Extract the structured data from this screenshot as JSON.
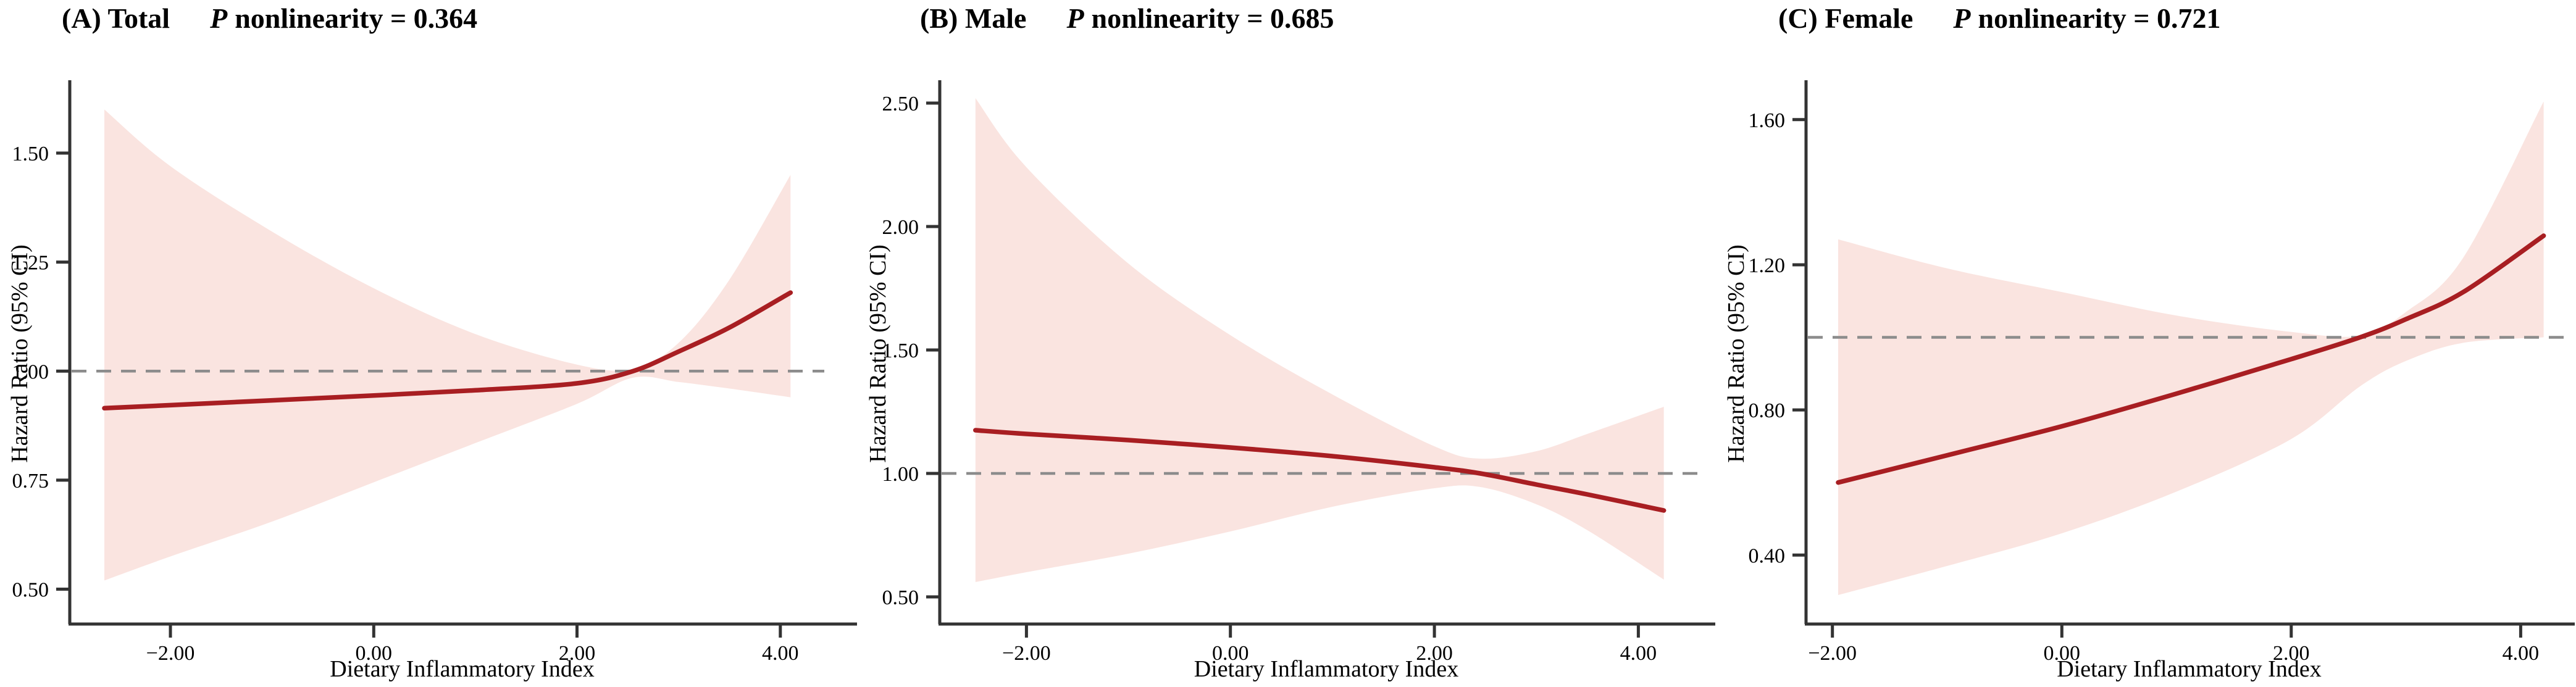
{
  "figure": {
    "background": "#FFFFFF",
    "x_axis_label": "Dietary Inflammatory Index",
    "y_axis_label": "Hazard Ratio (95% CI)",
    "reference_line": 1.0,
    "colors": {
      "spline_line": "#A81E22",
      "ci_band": "#FAE4E0",
      "reference_dashed": "#8C8C8C",
      "axis": "#333333",
      "text": "#000000"
    }
  },
  "chart_data": [
    {
      "type": "line",
      "title": "(A) Total",
      "p_symbol": "P",
      "p_rest": "nonlinearity = 0.364",
      "p_nonlinearity": 0.364,
      "xlabel": "Dietary Inflammatory Index",
      "ylabel": "Hazard Ratio (95% CI)",
      "xlim": [
        -2.99,
        4.73
      ],
      "ylim": [
        0.42,
        1.66
      ],
      "ref_line": 1.0,
      "grid": false,
      "legend": "none",
      "x_ticks": {
        "values": [
          -2,
          0,
          2,
          4
        ],
        "labels": [
          "−2.00",
          "0.00",
          "2.00",
          "4.00"
        ]
      },
      "y_ticks": {
        "values": [
          0.5,
          0.75,
          1.0,
          1.25,
          1.5
        ],
        "labels": [
          "0.50",
          "0.75",
          "1.00",
          "1.25",
          "1.50"
        ]
      },
      "series": {
        "name": "Hazard Ratio (95% CI)",
        "x": [
          -2.65,
          -2.0,
          -1.0,
          0.0,
          1.0,
          2.0,
          2.55,
          3.0,
          3.5,
          4.1
        ],
        "hr": [
          0.915,
          0.922,
          0.933,
          0.944,
          0.956,
          0.972,
          1.0,
          1.045,
          1.1,
          1.18
        ],
        "ci_high": [
          1.6,
          1.47,
          1.32,
          1.19,
          1.085,
          1.015,
          1.005,
          1.065,
          1.21,
          1.45
        ],
        "ci_low": [
          0.52,
          0.575,
          0.655,
          0.745,
          0.835,
          0.925,
          0.985,
          0.975,
          0.96,
          0.94
        ]
      }
    },
    {
      "type": "line",
      "title": "(B) Male",
      "p_symbol": "P",
      "p_rest": "nonlinearity = 0.685",
      "p_nonlinearity": 0.685,
      "xlabel": "Dietary Inflammatory Index",
      "ylabel": "Hazard Ratio (95% CI)",
      "xlim": [
        -2.85,
        4.73
      ],
      "ylim": [
        0.39,
        2.58
      ],
      "ref_line": 1.0,
      "grid": false,
      "legend": "none",
      "x_ticks": {
        "values": [
          -2,
          0,
          2,
          4
        ],
        "labels": [
          "−2.00",
          "0.00",
          "2.00",
          "4.00"
        ]
      },
      "y_ticks": {
        "values": [
          0.5,
          1.0,
          1.5,
          2.0,
          2.5
        ],
        "labels": [
          "0.50",
          "1.00",
          "1.50",
          "2.00",
          "2.50"
        ]
      },
      "series": {
        "name": "Hazard Ratio (95% CI)",
        "x": [
          -2.5,
          -2.0,
          -1.0,
          0.0,
          1.0,
          2.0,
          2.45,
          3.0,
          3.5,
          4.25
        ],
        "hr": [
          1.175,
          1.16,
          1.135,
          1.105,
          1.07,
          1.025,
          1.0,
          0.955,
          0.915,
          0.85
        ],
        "ci_high": [
          2.52,
          2.24,
          1.85,
          1.56,
          1.32,
          1.11,
          1.06,
          1.09,
          1.16,
          1.27
        ],
        "ci_low": [
          0.56,
          0.6,
          0.675,
          0.765,
          0.865,
          0.94,
          0.945,
          0.875,
          0.77,
          0.57
        ]
      }
    },
    {
      "type": "line",
      "title": "(C) Female",
      "p_symbol": "P",
      "p_rest": "nonlinearity = 0.721",
      "p_nonlinearity": 0.721,
      "xlabel": "Dietary Inflammatory Index",
      "ylabel": "Hazard Ratio (95% CI)",
      "xlim": [
        -2.23,
        4.45
      ],
      "ylim": [
        0.21,
        1.7
      ],
      "ref_line": 1.0,
      "grid": false,
      "legend": "none",
      "x_ticks": {
        "values": [
          -2,
          0,
          2,
          4
        ],
        "labels": [
          "−2.00",
          "0.00",
          "2.00",
          "4.00"
        ]
      },
      "y_ticks": {
        "values": [
          0.4,
          0.8,
          1.2,
          1.6
        ],
        "labels": [
          "0.40",
          "0.80",
          "1.20",
          "1.60"
        ]
      },
      "series": {
        "name": "Hazard Ratio (95% CI)",
        "x": [
          -1.95,
          -1.0,
          0.0,
          1.0,
          2.0,
          2.6,
          3.0,
          3.5,
          4.2
        ],
        "hr": [
          0.6,
          0.675,
          0.755,
          0.845,
          0.94,
          1.0,
          1.05,
          1.125,
          1.28
        ],
        "ci_high": [
          1.27,
          1.19,
          1.125,
          1.06,
          1.015,
          1.005,
          1.07,
          1.22,
          1.65
        ],
        "ci_low": [
          0.29,
          0.37,
          0.46,
          0.575,
          0.72,
          0.865,
          0.935,
          0.985,
          1.0
        ]
      }
    }
  ]
}
